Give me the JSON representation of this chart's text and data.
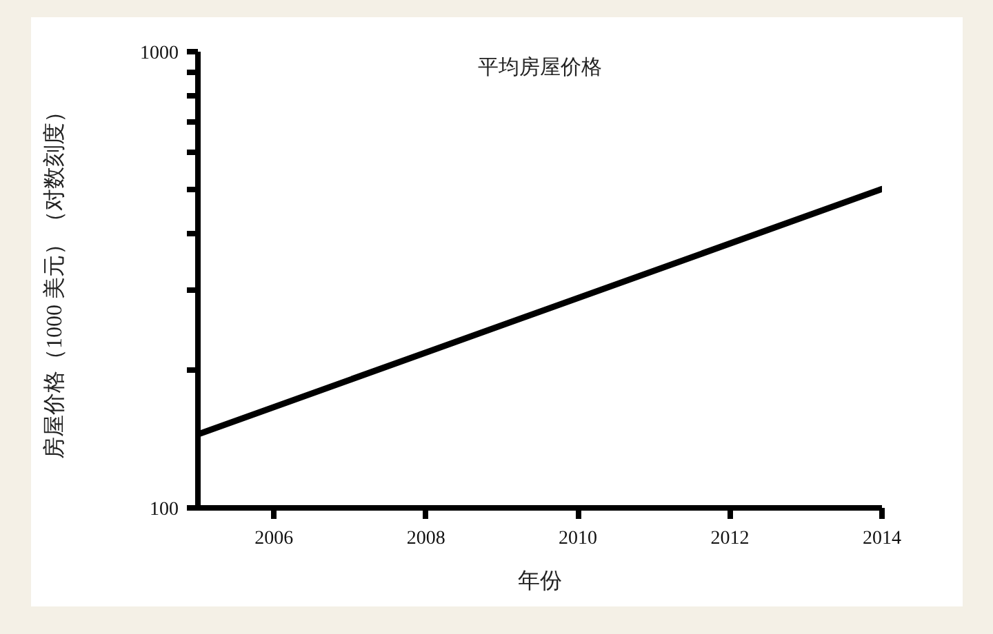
{
  "chart_data": {
    "type": "line",
    "title": "平均房屋价格",
    "xlabel": "年份",
    "ylabel": "房屋价格（1000 美元）（对数刻度）",
    "x": [
      2005,
      2014
    ],
    "series": [
      {
        "color": "#000000",
        "values": [
          145,
          500
        ]
      }
    ],
    "xlim": [
      2005,
      2014
    ],
    "ylim": [
      100,
      1000
    ],
    "xticks": [
      2006,
      2008,
      2010,
      2012,
      2014
    ],
    "yticks": [
      100,
      {
        "value": 200,
        "label": null
      },
      {
        "value": 300,
        "label": null
      },
      {
        "value": 400,
        "label": null
      },
      {
        "value": 500,
        "label": null
      },
      {
        "value": 600,
        "label": null
      },
      {
        "value": 700,
        "label": null
      },
      {
        "value": 800,
        "label": null
      },
      {
        "value": 900,
        "label": null
      },
      1000
    ],
    "log": "y",
    "line_style": "solid"
  }
}
